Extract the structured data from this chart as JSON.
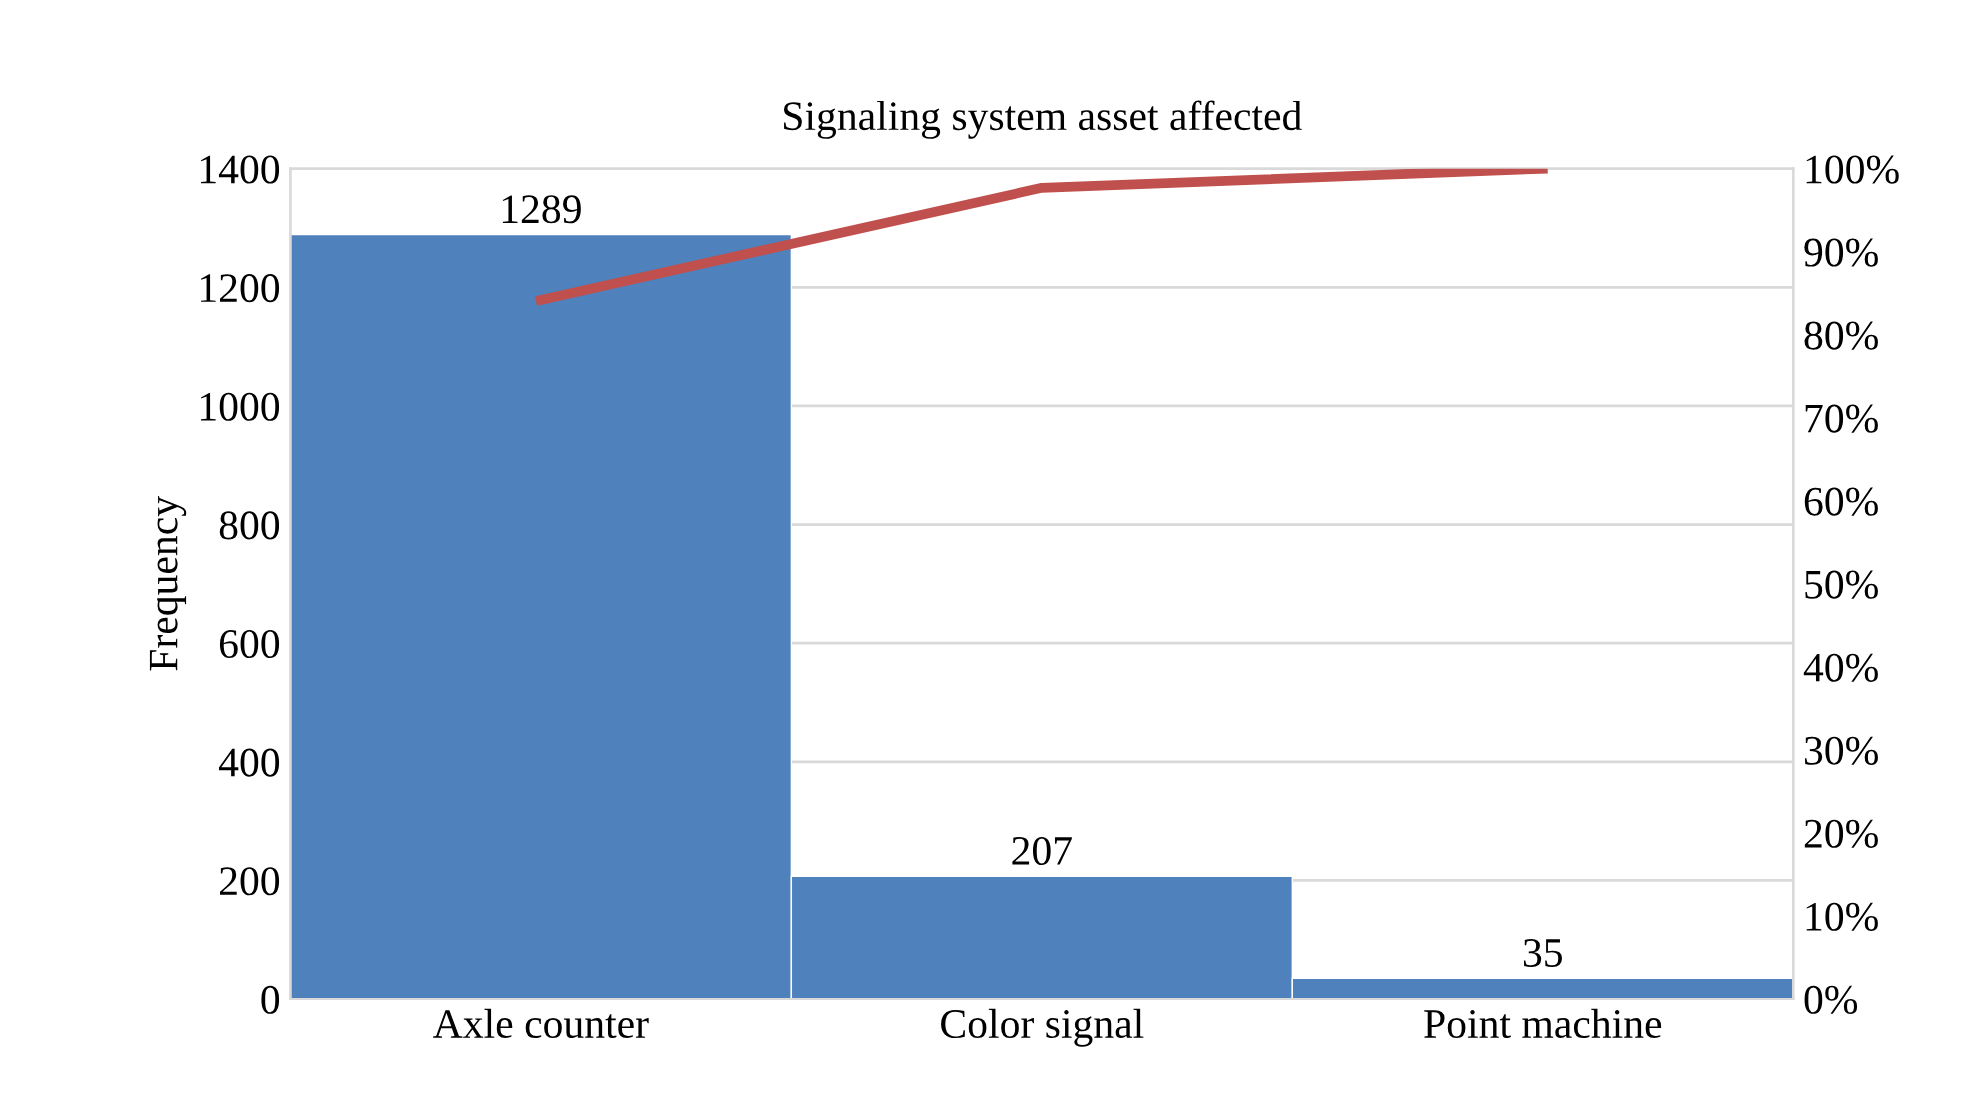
{
  "chart_data": {
    "type": "bar",
    "title": "Signaling system asset affected",
    "ylabel": "Frequency",
    "categories": [
      "Axle counter",
      "Color signal",
      "Point machine"
    ],
    "series": [
      {
        "color": "#4f81bd",
        "values": [
          1289,
          207,
          35
        ],
        "value_labels": [
          "1289",
          "207",
          "35"
        ]
      },
      {
        "type": "line",
        "axis": "y2",
        "color": "#c0504d",
        "values": [
          84.2,
          97.7,
          100
        ]
      }
    ],
    "ylim": [
      0,
      1400
    ],
    "yticks": [
      0,
      200,
      400,
      600,
      800,
      1000,
      1200,
      1400
    ],
    "y2lim": [
      0,
      100
    ],
    "y2ticks": [
      {
        "value": 0,
        "label": "0%"
      },
      {
        "value": 10,
        "label": "10%"
      },
      {
        "value": 20,
        "label": "20%"
      },
      {
        "value": 30,
        "label": "30%"
      },
      {
        "value": 40,
        "label": "40%"
      },
      {
        "value": 50,
        "label": "50%"
      },
      {
        "value": 60,
        "label": "60%"
      },
      {
        "value": 70,
        "label": "70%"
      },
      {
        "value": 80,
        "label": "80%"
      },
      {
        "value": 90,
        "label": "90%"
      },
      {
        "value": 100,
        "label": "100%"
      }
    ],
    "grid": "y",
    "legend": false,
    "marker": "none",
    "line_style": "solid"
  }
}
